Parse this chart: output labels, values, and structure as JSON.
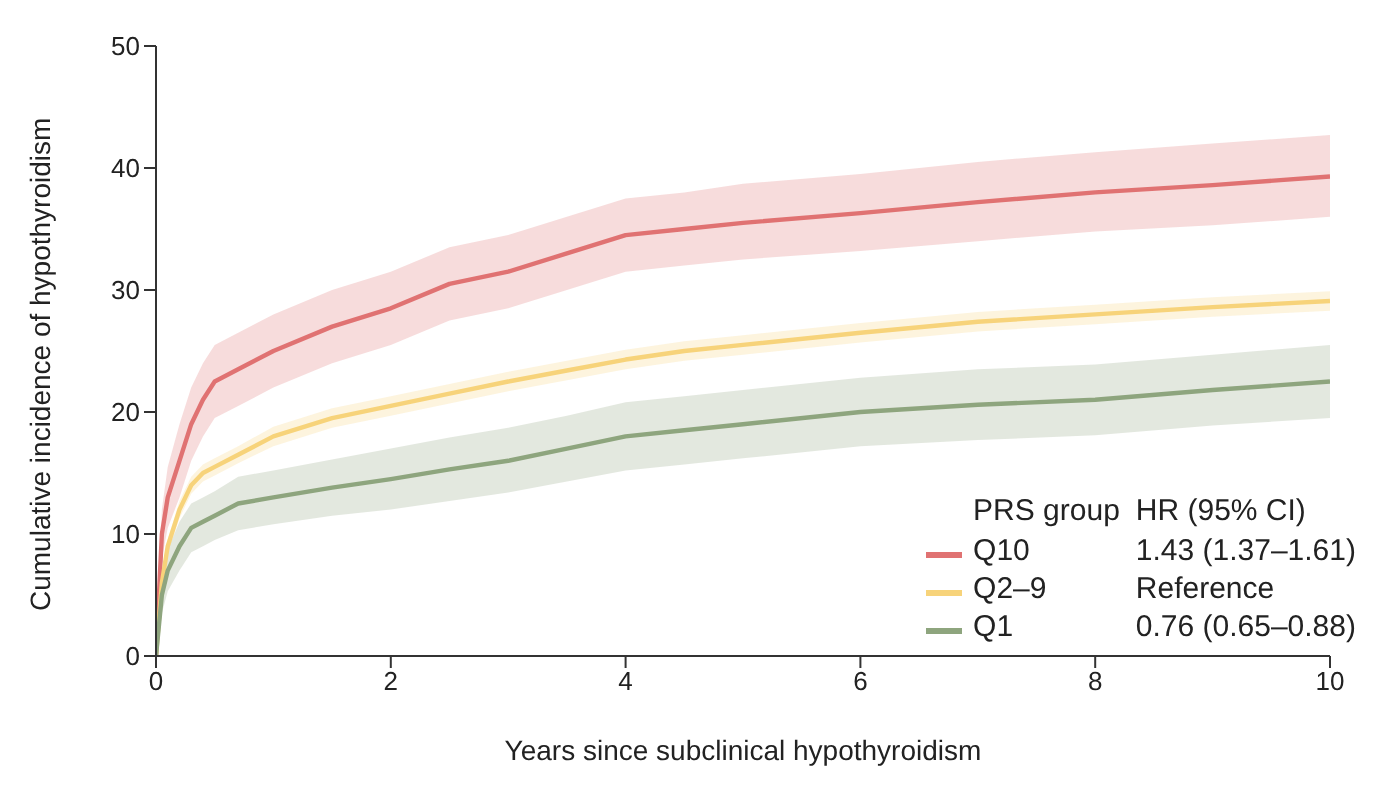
{
  "chart_data": {
    "type": "line",
    "xlabel": "Years since subclinical hypothyroidism",
    "ylabel": "Cumulative incidence of hypothyroidism",
    "x": [
      0,
      0.05,
      0.1,
      0.2,
      0.3,
      0.4,
      0.5,
      0.7,
      1,
      1.5,
      2,
      2.5,
      3,
      3.5,
      4,
      4.5,
      5,
      6,
      7,
      8,
      9,
      10
    ],
    "series": [
      {
        "name": "Q10",
        "color": "#e07272",
        "values": [
          0,
          10,
          13,
          16,
          19,
          21,
          22.5,
          23.5,
          25,
          27,
          28.5,
          30.5,
          31.5,
          33,
          34.5,
          35,
          35.5,
          36.3,
          37.2,
          38,
          38.6,
          39.3
        ],
        "lower": [
          0,
          8,
          10.5,
          13,
          16,
          18,
          19.5,
          20.5,
          22,
          24,
          25.5,
          27.5,
          28.5,
          30,
          31.5,
          32,
          32.5,
          33.2,
          34,
          34.8,
          35.3,
          36
        ],
        "upper": [
          0,
          12,
          15.5,
          19,
          22,
          24,
          25.5,
          26.5,
          28,
          30,
          31.5,
          33.5,
          34.5,
          36,
          37.5,
          38,
          38.7,
          39.5,
          40.5,
          41.3,
          42,
          42.7
        ]
      },
      {
        "name": "Q2–9",
        "color": "#f7d37a",
        "values": [
          0,
          6,
          9,
          12,
          14,
          15,
          15.5,
          16.5,
          18,
          19.5,
          20.5,
          21.5,
          22.5,
          23.4,
          24.3,
          25,
          25.5,
          26.5,
          27.4,
          28,
          28.6,
          29.1
        ],
        "lower": [
          0,
          5.5,
          8.4,
          11.3,
          13.3,
          14.3,
          14.8,
          15.8,
          17.2,
          18.7,
          19.7,
          20.7,
          21.7,
          22.6,
          23.5,
          24.2,
          24.7,
          25.7,
          26.6,
          27.2,
          27.8,
          28.3
        ],
        "upper": [
          0,
          6.5,
          9.6,
          12.7,
          14.7,
          15.7,
          16.2,
          17.2,
          18.8,
          20.3,
          21.3,
          22.3,
          23.3,
          24.2,
          25.1,
          25.8,
          26.3,
          27.3,
          28.2,
          28.8,
          29.4,
          29.9
        ]
      },
      {
        "name": "Q1",
        "color": "#8ea57e",
        "values": [
          0,
          5,
          7,
          9,
          10.5,
          11,
          11.5,
          12.5,
          13,
          13.8,
          14.5,
          15.3,
          16,
          17,
          18,
          18.5,
          19,
          20,
          20.6,
          21,
          21.8,
          22.5
        ],
        "lower": [
          0,
          3.5,
          5.3,
          7,
          8.5,
          9,
          9.5,
          10.3,
          10.8,
          11.5,
          12,
          12.7,
          13.4,
          14.3,
          15.2,
          15.7,
          16.2,
          17.2,
          17.7,
          18.1,
          18.9,
          19.5
        ],
        "upper": [
          0,
          6.5,
          8.7,
          11,
          12.5,
          13,
          13.5,
          14.7,
          15.2,
          16.1,
          17,
          17.9,
          18.7,
          19.7,
          20.8,
          21.3,
          21.8,
          22.8,
          23.5,
          23.9,
          24.7,
          25.5
        ]
      }
    ],
    "xlim": [
      0,
      10
    ],
    "xticks": [
      0,
      2,
      4,
      6,
      8,
      10
    ],
    "ylim": [
      0,
      50
    ],
    "yticks": [
      0,
      10,
      20,
      30,
      40,
      50
    ],
    "legend": "bottom right",
    "legend_title": "PRS group",
    "annotations": [
      "HR (95% CI)",
      "1.43 (1.37–1.61)",
      "Reference",
      "0.76 (0.65–0.88)"
    ]
  }
}
